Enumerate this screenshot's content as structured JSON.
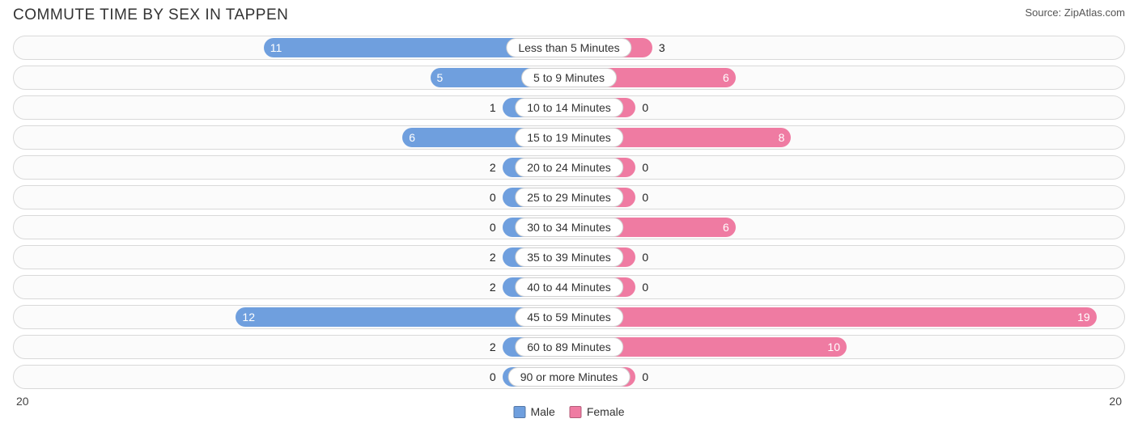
{
  "title": "Commute Time By Sex in Tappen",
  "source": "Source: ZipAtlas.com",
  "type": "diverging-bar",
  "axis_max": 20,
  "axis_left_label": "20",
  "axis_right_label": "20",
  "colors": {
    "male": "#6f9fde",
    "female": "#ef7ba2",
    "row_border": "#d9d9d9",
    "row_bg": "#fbfbfb",
    "label_border": "#d0d0d0",
    "label_bg": "#ffffff",
    "background": "#ffffff",
    "title_color": "#333333"
  },
  "min_bar_pct": 6.0,
  "inside_threshold_pct": 10.0,
  "legend": [
    {
      "label": "Male",
      "color": "#6f9fde"
    },
    {
      "label": "Female",
      "color": "#ef7ba2"
    }
  ],
  "rows": [
    {
      "label": "Less than 5 Minutes",
      "male": 11,
      "female": 3
    },
    {
      "label": "5 to 9 Minutes",
      "male": 5,
      "female": 6
    },
    {
      "label": "10 to 14 Minutes",
      "male": 1,
      "female": 0
    },
    {
      "label": "15 to 19 Minutes",
      "male": 6,
      "female": 8
    },
    {
      "label": "20 to 24 Minutes",
      "male": 2,
      "female": 0
    },
    {
      "label": "25 to 29 Minutes",
      "male": 0,
      "female": 0
    },
    {
      "label": "30 to 34 Minutes",
      "male": 0,
      "female": 6
    },
    {
      "label": "35 to 39 Minutes",
      "male": 2,
      "female": 0
    },
    {
      "label": "40 to 44 Minutes",
      "male": 2,
      "female": 0
    },
    {
      "label": "45 to 59 Minutes",
      "male": 12,
      "female": 19
    },
    {
      "label": "60 to 89 Minutes",
      "male": 2,
      "female": 10
    },
    {
      "label": "90 or more Minutes",
      "male": 0,
      "female": 0
    }
  ]
}
